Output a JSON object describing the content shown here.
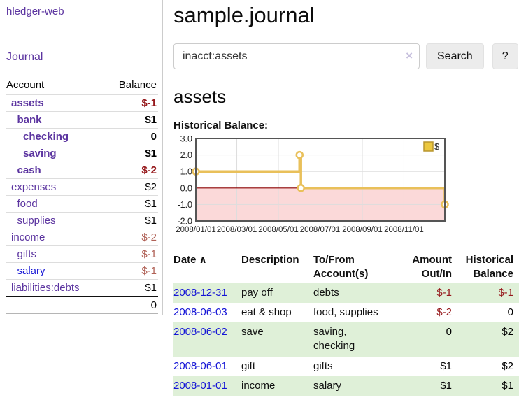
{
  "sidebar": {
    "app_title": "hledger-web",
    "journal_label": "Journal",
    "accounts_table": {
      "headers": {
        "account": "Account",
        "balance": "Balance"
      },
      "rows": [
        {
          "name": "assets",
          "indent": 1,
          "bold": true,
          "balance": "$-1",
          "neg": "strong"
        },
        {
          "name": "bank",
          "indent": 2,
          "bold": true,
          "balance": "$1"
        },
        {
          "name": "checking",
          "indent": 3,
          "bold": true,
          "balance": "0"
        },
        {
          "name": "saving",
          "indent": 3,
          "bold": true,
          "balance": "$1"
        },
        {
          "name": "cash",
          "indent": 2,
          "bold": true,
          "balance": "$-2",
          "neg": "strong"
        },
        {
          "name": "expenses",
          "indent": 1,
          "bold": false,
          "balance": "$2"
        },
        {
          "name": "food",
          "indent": 2,
          "bold": false,
          "balance": "$1"
        },
        {
          "name": "supplies",
          "indent": 2,
          "bold": false,
          "balance": "$1"
        },
        {
          "name": "income",
          "indent": 1,
          "bold": false,
          "balance": "$-2",
          "neg": "soft"
        },
        {
          "name": "gifts",
          "indent": 2,
          "bold": false,
          "balance": "$-1",
          "neg": "soft"
        },
        {
          "name": "salary",
          "indent": 2,
          "bold": false,
          "balance": "$-1",
          "neg": "soft",
          "link_blue": true
        },
        {
          "name": "liabilities:debts",
          "indent": 1,
          "bold": false,
          "balance": "$1"
        }
      ],
      "total": "0"
    }
  },
  "main": {
    "title": "sample.journal",
    "search": {
      "value": "inacct:assets",
      "clear_icon": "×",
      "button_label": "Search",
      "help_label": "?"
    },
    "account_heading": "assets",
    "chart_label": "Historical Balance:"
  },
  "chart_data": {
    "type": "line",
    "title": "Historical Balance",
    "legend": "$",
    "legend_position": "top-right",
    "grid": true,
    "ylim": [
      -2.0,
      3.0
    ],
    "y_ticks": [
      3.0,
      2.0,
      1.0,
      0.0,
      -1.0,
      -2.0
    ],
    "x_range_days": [
      0,
      365
    ],
    "x_ticks": [
      {
        "day": 0,
        "label": "2008/01/01"
      },
      {
        "day": 60,
        "label": "2008/03/01"
      },
      {
        "day": 121,
        "label": "2008/05/01"
      },
      {
        "day": 182,
        "label": "2008/07/01"
      },
      {
        "day": 244,
        "label": "2008/09/01"
      },
      {
        "day": 305,
        "label": "2008/11/01"
      }
    ],
    "series": [
      {
        "name": "$",
        "color": "#e9c05a",
        "step_points": [
          [
            0,
            1
          ],
          [
            152,
            1
          ],
          [
            152,
            2
          ],
          [
            154,
            2
          ],
          [
            154,
            0
          ],
          [
            365,
            0
          ],
          [
            365,
            -1
          ]
        ],
        "markers": [
          [
            0,
            1
          ],
          [
            152,
            2
          ],
          [
            154,
            0
          ],
          [
            365,
            -1
          ]
        ]
      }
    ],
    "negative_region_color": "#fbd9d9",
    "zero_line_color": "#8b0000",
    "gridline_color": "#ddd",
    "border_color": "#555"
  },
  "transactions": {
    "headers": {
      "date": "Date",
      "sort_icon": "∧",
      "description": "Description",
      "accounts_line1": "To/From",
      "accounts_line2": "Account(s)",
      "amount_line1": "Amount",
      "amount_line2": "Out/In",
      "balance_line1": "Historical",
      "balance_line2": "Balance"
    },
    "rows": [
      {
        "date": "2008-12-31",
        "description": "pay off",
        "accounts": "debts",
        "amount": "$-1",
        "amount_neg": true,
        "balance": "$-1",
        "balance_neg": true
      },
      {
        "date": "2008-06-03",
        "description": "eat & shop",
        "accounts": "food, supplies",
        "amount": "$-2",
        "amount_neg": true,
        "balance": "0",
        "balance_neg": false
      },
      {
        "date": "2008-06-02",
        "description": "save",
        "accounts": "saving,\nchecking",
        "amount": "0",
        "amount_neg": false,
        "balance": "$2",
        "balance_neg": false
      },
      {
        "date": "2008-06-01",
        "description": "gift",
        "accounts": "gifts",
        "amount": "$1",
        "amount_neg": false,
        "balance": "$2",
        "balance_neg": false
      },
      {
        "date": "2008-01-01",
        "description": "income",
        "accounts": "salary",
        "amount": "$1",
        "amount_neg": false,
        "balance": "$1",
        "balance_neg": false
      }
    ]
  }
}
